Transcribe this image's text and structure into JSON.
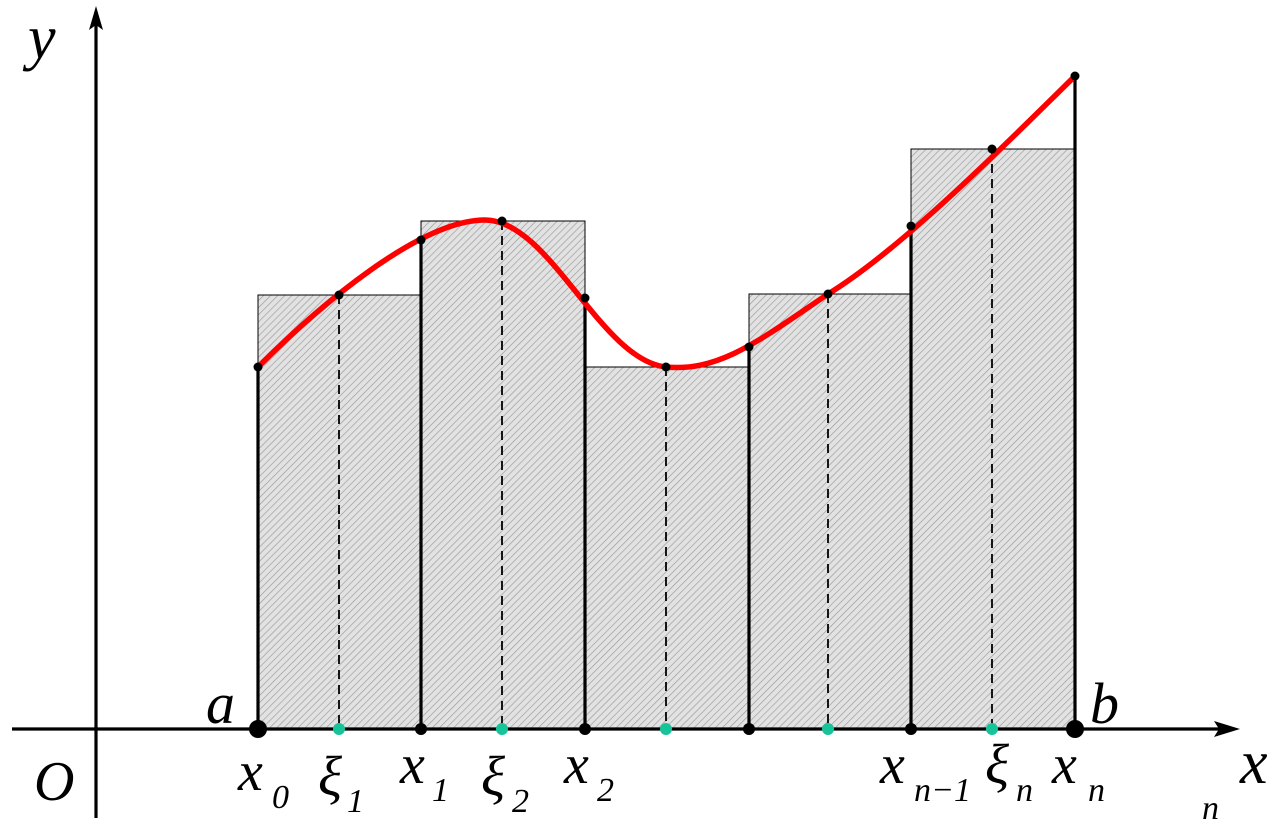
{
  "labels": {
    "y_axis": "y",
    "x_axis": "x",
    "origin": "O",
    "a": "a",
    "b": "b",
    "x0": "x",
    "x0_sub": "0",
    "xi1": "ξ",
    "xi1_sub": "1",
    "x1": "x",
    "x1_sub": "1",
    "xi2": "ξ",
    "xi2_sub": "2",
    "x2": "x",
    "x2_sub": "2",
    "xn1": "x",
    "xn1_sub": "n−1",
    "xin": "ξ",
    "xin_sub": "n",
    "xn": "x",
    "xn_sub": "n",
    "corner_mark": "n"
  },
  "colors": {
    "curve": "#ff0000",
    "rect_fill": "#e2e2e2",
    "hatch": "#9a9a9a",
    "sample_point": "#17c49a",
    "axis": "#000000"
  }
}
